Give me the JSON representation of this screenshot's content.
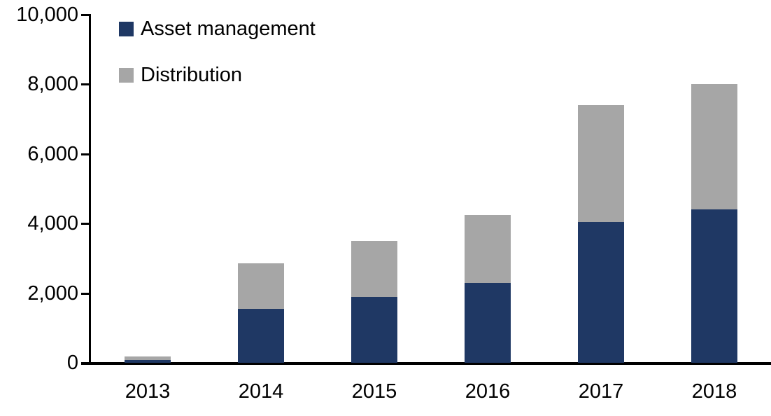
{
  "chart_data": {
    "type": "bar",
    "stacked": true,
    "title": "",
    "categories": [
      "2013",
      "2014",
      "2015",
      "2016",
      "2017",
      "2018"
    ],
    "series": [
      {
        "name": "Asset management",
        "color": "#1F3864",
        "values": [
          80,
          1550,
          1900,
          2300,
          4050,
          4400
        ]
      },
      {
        "name": "Distribution",
        "color": "#A6A6A6",
        "values": [
          100,
          1300,
          1600,
          1950,
          3350,
          3600
        ]
      }
    ],
    "totals": [
      180,
      2850,
      3500,
      4250,
      7400,
      8000
    ],
    "ylim": [
      0,
      10000
    ],
    "ytick_step": 2000,
    "ytick_labels": [
      "0",
      "2,000",
      "4,000",
      "6,000",
      "8,000",
      "10,000"
    ],
    "xlabel": "",
    "ylabel": "",
    "grid": false,
    "legend_position": "top-left-inside",
    "axis_color": "#000000",
    "background_color": "#FFFFFF"
  }
}
